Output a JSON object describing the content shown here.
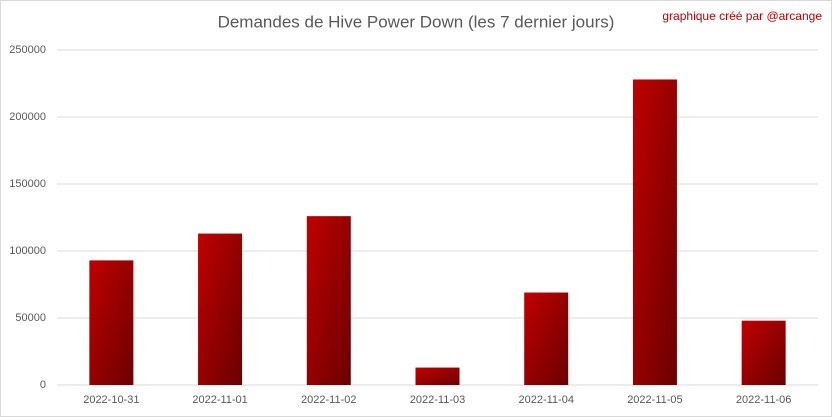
{
  "chart_data": {
    "type": "bar",
    "title": "Demandes de Hive Power Down (les 7 dernier jours)",
    "annotation": "graphique créé par @arcange",
    "categories": [
      "2022-10-31",
      "2022-11-01",
      "2022-11-02",
      "2022-11-03",
      "2022-11-04",
      "2022-11-05",
      "2022-11-06"
    ],
    "values": [
      93000,
      113000,
      126000,
      13000,
      69000,
      228000,
      48000
    ],
    "color": "#c00000",
    "ylim": [
      0,
      250000
    ],
    "yticks": [
      0,
      50000,
      100000,
      150000,
      200000,
      250000
    ],
    "grid": true
  }
}
